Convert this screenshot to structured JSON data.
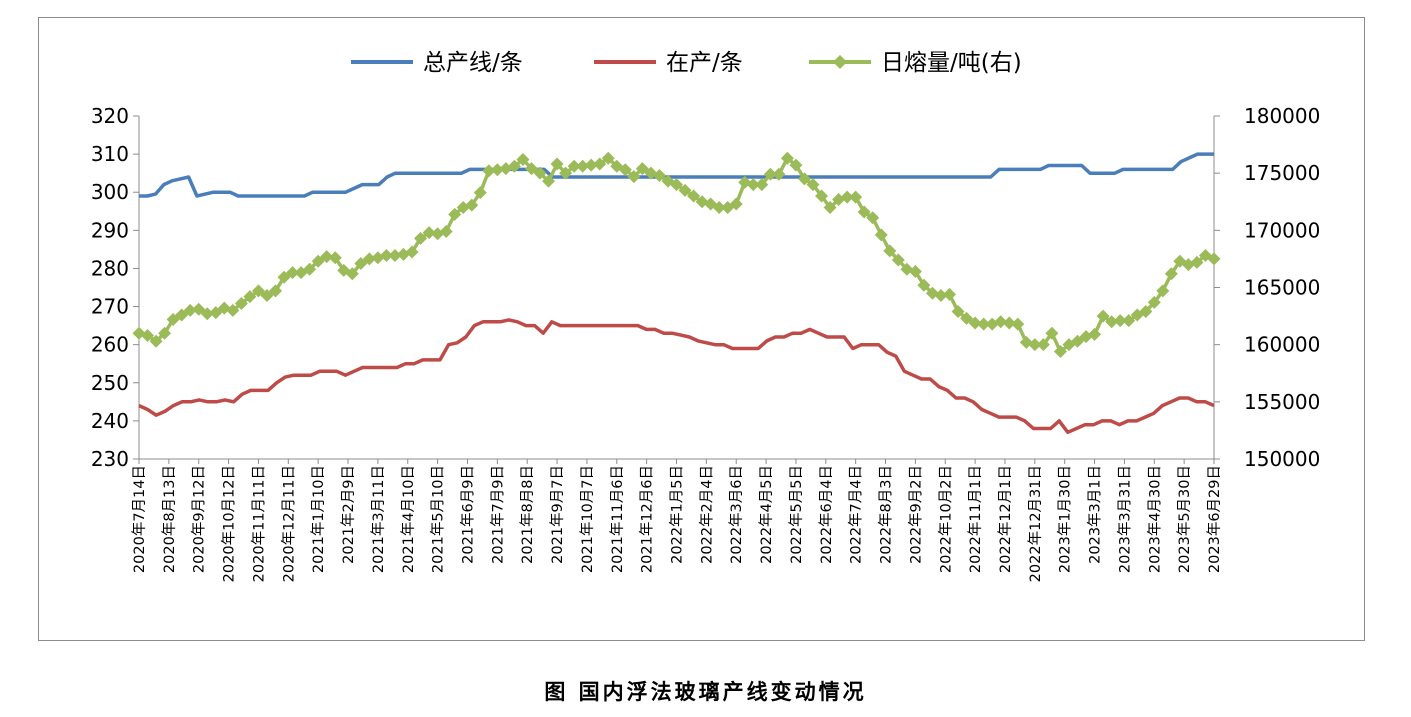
{
  "caption": "图 国内浮法玻璃产线变动情况",
  "chart_data": {
    "type": "line",
    "legend_position": "top",
    "grid": false,
    "x_tick_labels": [
      "2020年7月14日",
      "2020年8月13日",
      "2020年9月12日",
      "2020年10月12日",
      "2020年11月11日",
      "2020年12月11日",
      "2021年1月10日",
      "2021年2月9日",
      "2021年3月11日",
      "2021年4月10日",
      "2021年5月10日",
      "2021年6月9日",
      "2021年7月9日",
      "2021年8月8日",
      "2021年9月7日",
      "2021年10月7日",
      "2021年11月6日",
      "2021年12月6日",
      "2022年1月5日",
      "2022年2月4日",
      "2022年3月6日",
      "2022年4月5日",
      "2022年5月5日",
      "2022年6月4日",
      "2022年7月4日",
      "2022年8月3日",
      "2022年9月2日",
      "2022年10月2日",
      "2022年11月1日",
      "2022年12月1日",
      "2022年12月31日",
      "2023年1月30日",
      "2023年3月1日",
      "2023年3月31日",
      "2023年4月30日",
      "2023年5月30日",
      "2023年6月29日"
    ],
    "y_left": {
      "ticks": [
        "230",
        "240",
        "250",
        "260",
        "270",
        "280",
        "290",
        "300",
        "310",
        "320"
      ],
      "min": 230,
      "max": 320
    },
    "y_right": {
      "ticks": [
        "150000",
        "155000",
        "160000",
        "165000",
        "170000",
        "175000",
        "180000"
      ],
      "min": 150000,
      "max": 180000
    },
    "series": [
      {
        "name": "总产线/条",
        "axis": "left",
        "color": "#4a7ebb",
        "marker": "none",
        "values": [
          299,
          299,
          299.5,
          302,
          303,
          303.5,
          304,
          299,
          299.5,
          300,
          300,
          300,
          299,
          299,
          299,
          299,
          299,
          299,
          299,
          299,
          299,
          300,
          300,
          300,
          300,
          300,
          301,
          302,
          302,
          302,
          304,
          305,
          305,
          305,
          305,
          305,
          305,
          305,
          305,
          305,
          306,
          306,
          306,
          306,
          306,
          306,
          306,
          306,
          306,
          306,
          304,
          304,
          304,
          304,
          304,
          304,
          304,
          304,
          304,
          304,
          304,
          304,
          304,
          304,
          304,
          304,
          304,
          304,
          304,
          304,
          304,
          304,
          304,
          304,
          304,
          304,
          304,
          304,
          304,
          304,
          304,
          304,
          304,
          304,
          304,
          304,
          304,
          304,
          304,
          304,
          304,
          304,
          304,
          304,
          304,
          304,
          304,
          304,
          304,
          304,
          304,
          304,
          304,
          304,
          306,
          306,
          306,
          306,
          306,
          306,
          307,
          307,
          307,
          307,
          307,
          305,
          305,
          305,
          305,
          306,
          306,
          306,
          306,
          306,
          306,
          306,
          308,
          309,
          310,
          310,
          310
        ]
      },
      {
        "name": "在产/条",
        "axis": "left",
        "color": "#be4b48",
        "marker": "none",
        "values": [
          244,
          243,
          241.5,
          242.5,
          244,
          245,
          245,
          245.5,
          245,
          245,
          245.5,
          245,
          247,
          248,
          248,
          248,
          250,
          251.5,
          252,
          252,
          252,
          253,
          253,
          253,
          252,
          253,
          254,
          254,
          254,
          254,
          254,
          255,
          255,
          256,
          256,
          256,
          260,
          260.5,
          262,
          265,
          266,
          266,
          266,
          266.5,
          266,
          265,
          265,
          263,
          266,
          265,
          265,
          265,
          265,
          265,
          265,
          265,
          265,
          265,
          265,
          264,
          264,
          263,
          263,
          262.5,
          262,
          261,
          260.5,
          260,
          260,
          259,
          259,
          259,
          259,
          261,
          262,
          262,
          263,
          263,
          264,
          263,
          262,
          262,
          262,
          259,
          260,
          260,
          260,
          258,
          257,
          253,
          252,
          251,
          251,
          249,
          248,
          246,
          246,
          245,
          243,
          242,
          241,
          241,
          241,
          240,
          238,
          238,
          238,
          240,
          237,
          238,
          239,
          239,
          240,
          240,
          239,
          240,
          240,
          241,
          242,
          244,
          245,
          246,
          246,
          245,
          245,
          244
        ]
      },
      {
        "name": "日熔量/吨(右)",
        "axis": "right",
        "color": "#9bbb59",
        "marker": "diamond",
        "values": [
          161000,
          160800,
          160300,
          161000,
          162200,
          162600,
          163000,
          163100,
          162700,
          162800,
          163200,
          163000,
          163600,
          164200,
          164700,
          164300,
          164700,
          165900,
          166300,
          166300,
          166600,
          167300,
          167700,
          167600,
          166500,
          166200,
          167100,
          167500,
          167600,
          167800,
          167800,
          167900,
          168100,
          169300,
          169800,
          169700,
          169900,
          171400,
          172000,
          172200,
          173300,
          175200,
          175300,
          175400,
          175600,
          176200,
          175400,
          175000,
          174300,
          175800,
          175000,
          175600,
          175600,
          175700,
          175800,
          176300,
          175600,
          175300,
          174700,
          175400,
          175000,
          174800,
          174300,
          174000,
          173500,
          173000,
          172500,
          172300,
          172000,
          172000,
          172300,
          174200,
          174000,
          174000,
          174900,
          174900,
          176300,
          175700,
          174500,
          174000,
          173000,
          172000,
          172700,
          172900,
          172900,
          171600,
          171100,
          169600,
          168200,
          167400,
          166600,
          166400,
          165200,
          164500,
          164300,
          164400,
          162900,
          162300,
          161900,
          161800,
          161800,
          162000,
          161900,
          161800,
          160200,
          160000,
          160000,
          161000,
          159400,
          160000,
          160300,
          160700,
          160900,
          162500,
          162000,
          162100,
          162100,
          162600,
          162900,
          163700,
          164700,
          166200,
          167300,
          167000,
          167200,
          167800,
          167500
        ]
      }
    ]
  }
}
